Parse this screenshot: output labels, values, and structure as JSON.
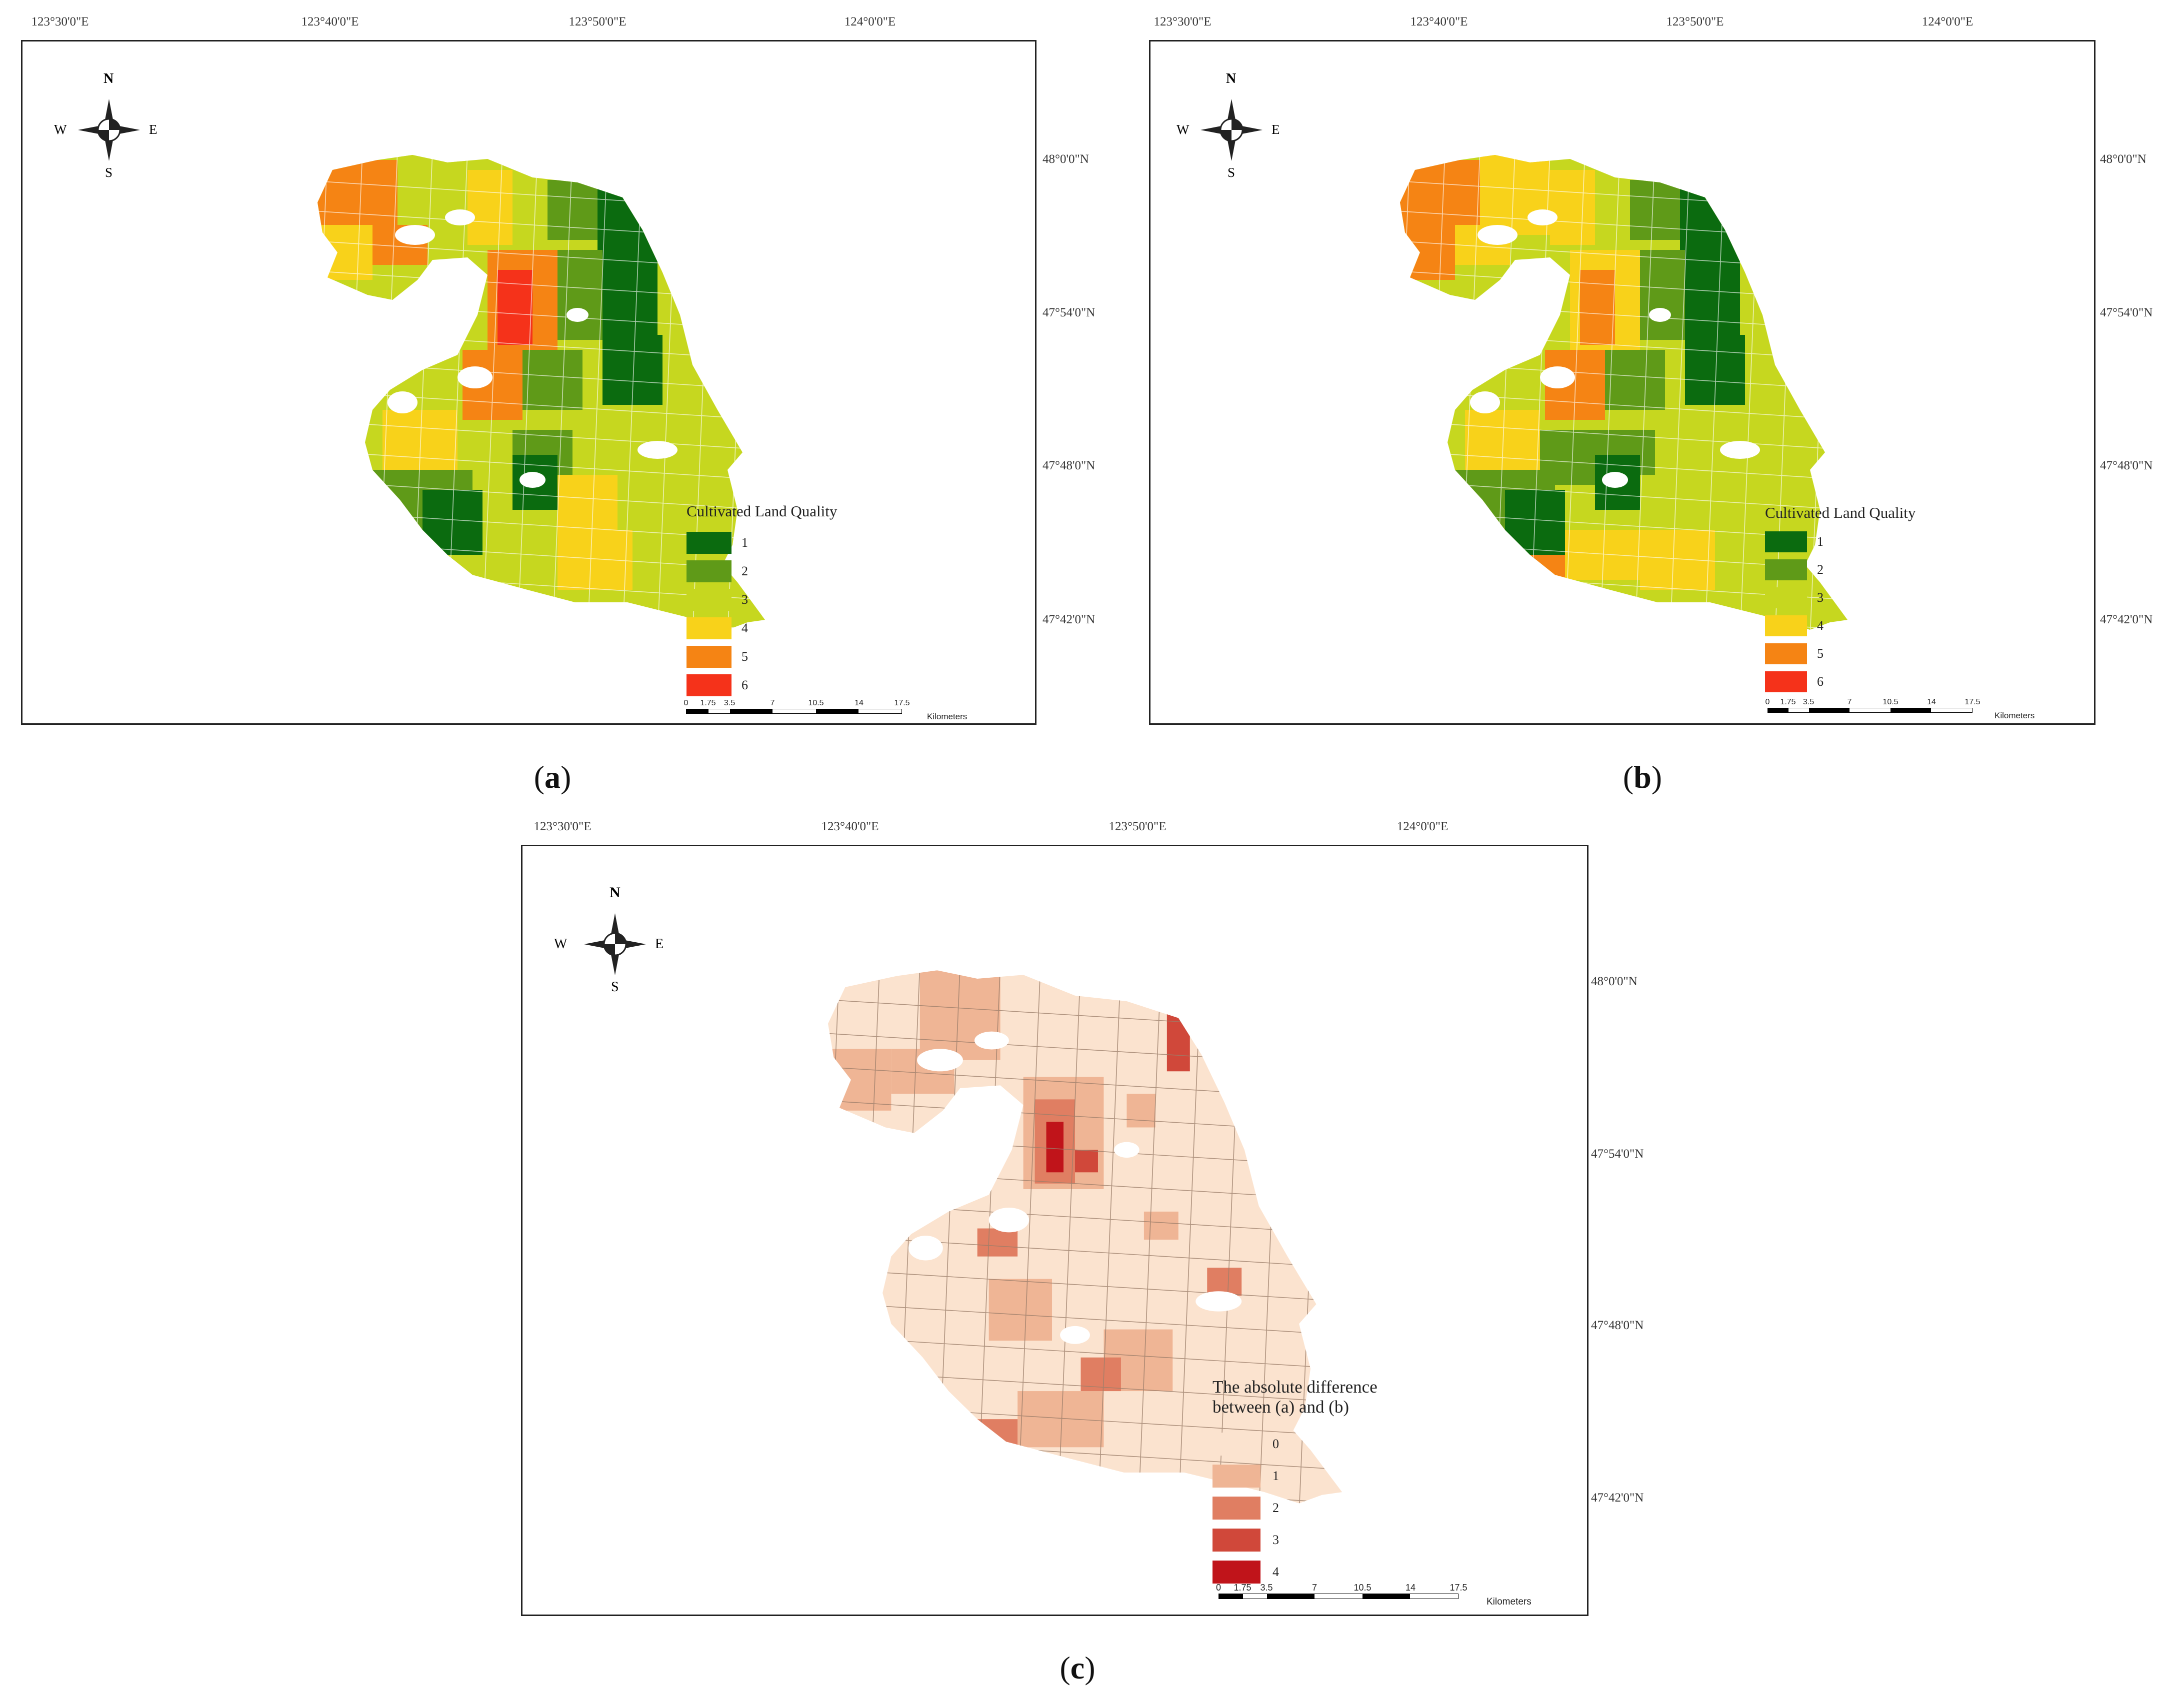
{
  "panels": [
    {
      "id": "a",
      "caption_letter": "a",
      "legend_title_lines": [
        "Cultivated Land Quality"
      ],
      "classes": [
        {
          "label": "1",
          "color": "#0b6b0f"
        },
        {
          "label": "2",
          "color": "#5f9a18"
        },
        {
          "label": "3",
          "color": "#c6d71f"
        },
        {
          "label": "4",
          "color": "#f8d21a"
        },
        {
          "label": "5",
          "color": "#f58414"
        },
        {
          "label": "6",
          "color": "#f5321a"
        }
      ],
      "lon_labels": [
        "123°30'0\"E",
        "123°40'0\"E",
        "123°50'0\"E",
        "124°0'0\"E"
      ],
      "lat_labels": [
        "48°0'0\"N",
        "47°54'0\"N",
        "47°48'0\"N",
        "47°42'0\"N"
      ],
      "scale_ticks": [
        "0",
        "1.75",
        "3.5",
        "7",
        "10.5",
        "14",
        "17.5"
      ],
      "scale_unit": "Kilometers"
    },
    {
      "id": "b",
      "caption_letter": "b",
      "legend_title_lines": [
        "Cultivated Land Quality"
      ],
      "classes": [
        {
          "label": "1",
          "color": "#0b6b0f"
        },
        {
          "label": "2",
          "color": "#5f9a18"
        },
        {
          "label": "3",
          "color": "#c6d71f"
        },
        {
          "label": "4",
          "color": "#f8d21a"
        },
        {
          "label": "5",
          "color": "#f58414"
        },
        {
          "label": "6",
          "color": "#f5321a"
        }
      ],
      "lon_labels": [
        "123°30'0\"E",
        "123°40'0\"E",
        "123°50'0\"E",
        "124°0'0\"E"
      ],
      "lat_labels": [
        "48°0'0\"N",
        "47°54'0\"N",
        "47°48'0\"N",
        "47°42'0\"N"
      ],
      "scale_ticks": [
        "0",
        "1.75",
        "3.5",
        "7",
        "10.5",
        "14",
        "17.5"
      ],
      "scale_unit": "Kilometers"
    },
    {
      "id": "c",
      "caption_letter": "c",
      "legend_title_lines": [
        "The absolute difference",
        "between (a) and (b)"
      ],
      "classes": [
        {
          "label": "0",
          "color": "#fbe3cf"
        },
        {
          "label": "1",
          "color": "#efb595"
        },
        {
          "label": "2",
          "color": "#e07e62"
        },
        {
          "label": "3",
          "color": "#d0483a"
        },
        {
          "label": "4",
          "color": "#c0141a"
        }
      ],
      "lon_labels": [
        "123°30'0\"E",
        "123°40'0\"E",
        "123°50'0\"E",
        "124°0'0\"E"
      ],
      "lat_labels": [
        "48°0'0\"N",
        "47°54'0\"N",
        "47°48'0\"N",
        "47°42'0\"N"
      ],
      "scale_ticks": [
        "0",
        "1.75",
        "3.5",
        "7",
        "10.5",
        "14",
        "17.5"
      ],
      "scale_unit": "Kilometers"
    }
  ],
  "compass": {
    "n": "N",
    "s": "S",
    "e": "E",
    "w": "W"
  },
  "colors": {
    "frame": "#222222",
    "boundary": "#8a8a8a"
  }
}
